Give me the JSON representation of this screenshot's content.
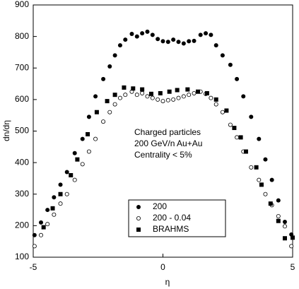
{
  "chart_data": {
    "type": "scatter",
    "x_label": "η",
    "y_label": "dn/dη",
    "annotation": [
      "Charged particles",
      "200 GeV/n Au+Au",
      "Centrality < 5%"
    ],
    "xlim": [
      -5,
      5
    ],
    "ylim": [
      100,
      900
    ],
    "xticks": [
      -5,
      0,
      5
    ],
    "yticks": [
      100,
      200,
      300,
      400,
      500,
      600,
      700,
      800,
      900
    ],
    "legend": "lower center",
    "series": [
      {
        "name": "200",
        "color": "#000000",
        "marker": "circle",
        "x": [
          -4.95,
          -4.7,
          -4.45,
          -4.2,
          -3.95,
          -3.7,
          -3.4,
          -3.1,
          -2.85,
          -2.6,
          -2.3,
          -2.05,
          -1.85,
          -1.65,
          -1.45,
          -1.2,
          -1.0,
          -0.8,
          -0.6,
          -0.4,
          -0.2,
          0,
          0.2,
          0.4,
          0.6,
          0.8,
          1.0,
          1.2,
          1.45,
          1.65,
          1.85,
          2.05,
          2.3,
          2.6,
          2.85,
          3.1,
          3.4,
          3.7,
          3.95,
          4.2,
          4.45,
          4.7,
          4.95
        ],
        "values": [
          170,
          210,
          250,
          290,
          330,
          370,
          430,
          475,
          545,
          610,
          665,
          705,
          740,
          772,
          790,
          808,
          800,
          810,
          815,
          805,
          792,
          785,
          783,
          790,
          783,
          778,
          785,
          786,
          805,
          810,
          805,
          772,
          740,
          710,
          665,
          610,
          545,
          475,
          410,
          345,
          280,
          212,
          172
        ]
      },
      {
        "name": "200 - 0.04",
        "color": "#000000",
        "marker": "open-circle",
        "x": [
          -4.95,
          -4.7,
          -4.45,
          -4.2,
          -3.95,
          -3.7,
          -3.4,
          -3.1,
          -2.85,
          -2.6,
          -2.3,
          -2.05,
          -1.85,
          -1.65,
          -1.45,
          -1.2,
          -1.0,
          -0.8,
          -0.6,
          -0.4,
          -0.2,
          0,
          0.2,
          0.4,
          0.6,
          0.8,
          1.0,
          1.2,
          1.45,
          1.65,
          1.85,
          2.05,
          2.3,
          2.6,
          2.85,
          3.1,
          3.4,
          3.7,
          3.95,
          4.2,
          4.45,
          4.7,
          4.95
        ],
        "values": [
          135,
          170,
          205,
          235,
          270,
          300,
          345,
          395,
          435,
          475,
          530,
          560,
          585,
          605,
          615,
          625,
          615,
          620,
          610,
          605,
          600,
          595,
          598,
          600,
          605,
          610,
          615,
          620,
          625,
          618,
          605,
          585,
          560,
          520,
          480,
          435,
          385,
          345,
          300,
          265,
          230,
          198,
          135
        ]
      },
      {
        "name": "BRAHMS",
        "color": "#000000",
        "marker": "square",
        "x": [
          -4.6,
          -4.25,
          -3.95,
          -3.55,
          -3.3,
          -2.9,
          -2.55,
          -2.15,
          -1.85,
          -1.5,
          -1.15,
          -0.8,
          -0.45,
          -0.1,
          0.25,
          0.55,
          0.95,
          1.35,
          1.7,
          2.05,
          2.45,
          2.75,
          3.0,
          3.2,
          3.6,
          3.8,
          4.15,
          4.45,
          4.7,
          5.0
        ],
        "values": [
          195,
          255,
          300,
          360,
          410,
          490,
          560,
          595,
          615,
          638,
          635,
          632,
          618,
          620,
          625,
          630,
          632,
          625,
          620,
          600,
          565,
          510,
          480,
          435,
          385,
          330,
          270,
          215,
          160,
          162
        ]
      }
    ]
  }
}
